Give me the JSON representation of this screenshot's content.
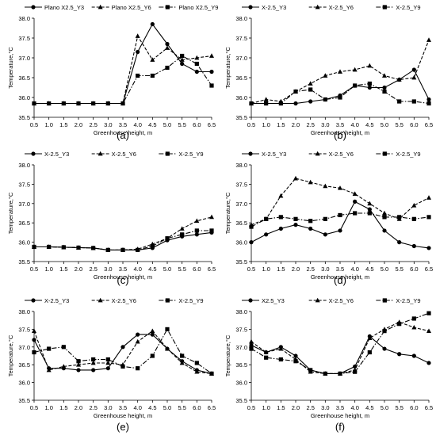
{
  "chart_data": [
    {
      "type": "line",
      "caption": "(a)",
      "xlabel": "Greenhouse height, m",
      "ylabel": "Temperature,°C",
      "xlim": [
        0.5,
        6.5
      ],
      "ylim": [
        35.5,
        38.0
      ],
      "x_ticks": [
        "0.5",
        "1.0",
        "1.5",
        "2.0",
        "2.5",
        "3.0",
        "3.5",
        "4.0",
        "4.5",
        "5.0",
        "5.5",
        "6.0",
        "6.5"
      ],
      "y_ticks": [
        "35.5",
        "36.0",
        "36.5",
        "37.0",
        "37.5",
        "38.0"
      ],
      "legend_position": "top",
      "x": [
        0.5,
        1.0,
        1.5,
        2.0,
        2.5,
        3.0,
        3.5,
        4.0,
        4.5,
        5.0,
        5.5,
        6.0,
        6.5
      ],
      "series": [
        {
          "name": "Plano X2.5_Y3",
          "marker": "circle",
          "dash": "solid",
          "values": [
            35.85,
            35.85,
            35.85,
            35.85,
            35.85,
            35.85,
            35.85,
            37.15,
            37.85,
            37.35,
            36.85,
            36.65,
            36.65
          ]
        },
        {
          "name": "Plano X2.5_Y6",
          "marker": "triangle",
          "dash": "dashed",
          "values": [
            35.85,
            35.85,
            35.85,
            35.85,
            35.85,
            35.85,
            35.85,
            37.55,
            36.95,
            37.25,
            36.95,
            37.0,
            37.05
          ]
        },
        {
          "name": "Plano X2.5_Y9",
          "marker": "square",
          "dash": "dashdot",
          "values": [
            35.85,
            35.85,
            35.85,
            35.85,
            35.85,
            35.85,
            35.85,
            36.55,
            36.55,
            36.75,
            37.05,
            36.85,
            36.3
          ]
        }
      ]
    },
    {
      "type": "line",
      "caption": "(b)",
      "xlabel": "Greenhouse height, m",
      "ylabel": "Temperature,°C",
      "xlim": [
        0.5,
        6.5
      ],
      "ylim": [
        35.5,
        38.0
      ],
      "x_ticks": [
        "0.5",
        "1.0",
        "1.5",
        "2.0",
        "2.5",
        "3.0",
        "3.5",
        "4.0",
        "4.5",
        "5.0",
        "5.5",
        "6.0",
        "6.5"
      ],
      "y_ticks": [
        "35.5",
        "36.0",
        "36.5",
        "37.0",
        "37.5",
        "38.0"
      ],
      "legend_position": "top",
      "x": [
        0.5,
        1.0,
        1.5,
        2.0,
        2.5,
        3.0,
        3.5,
        4.0,
        4.5,
        5.0,
        5.5,
        6.0,
        6.5
      ],
      "series": [
        {
          "name": "X-2.5_Y3",
          "marker": "circle",
          "dash": "solid",
          "values": [
            35.85,
            35.85,
            35.85,
            35.85,
            35.9,
            35.95,
            36.05,
            36.3,
            36.25,
            36.25,
            36.45,
            36.7,
            35.95
          ]
        },
        {
          "name": "X-2.5_Y6",
          "marker": "triangle",
          "dash": "dashed",
          "values": [
            35.85,
            35.95,
            35.9,
            36.15,
            36.35,
            36.55,
            36.65,
            36.7,
            36.8,
            36.55,
            36.45,
            36.5,
            37.45
          ]
        },
        {
          "name": "X-2.5_Y9",
          "marker": "square",
          "dash": "dashdot",
          "values": [
            35.85,
            35.85,
            35.85,
            36.15,
            36.2,
            35.95,
            36.0,
            36.3,
            36.35,
            36.15,
            35.9,
            35.9,
            35.85
          ]
        }
      ]
    },
    {
      "type": "line",
      "caption": "(c)",
      "xlabel": "Greenhouse height, m",
      "ylabel": "Temperature,°C",
      "xlim": [
        0.5,
        6.5
      ],
      "ylim": [
        35.5,
        38.0
      ],
      "x_ticks": [
        "0.5",
        "1.0",
        "1.5",
        "2.0",
        "2.5",
        "3.0",
        "3.5",
        "4.0",
        "4.5",
        "5.0",
        "5.5",
        "6.0",
        "6.5"
      ],
      "y_ticks": [
        "35.5",
        "36.0",
        "36.5",
        "37.0",
        "37.5",
        "38.0"
      ],
      "legend_position": "top",
      "x": [
        0.5,
        1.0,
        1.5,
        2.0,
        2.5,
        3.0,
        3.5,
        4.0,
        4.5,
        5.0,
        5.5,
        6.0,
        6.5
      ],
      "series": [
        {
          "name": "X-2.5_Y3",
          "marker": "circle",
          "dash": "solid",
          "values": [
            35.88,
            35.88,
            35.87,
            35.86,
            35.85,
            35.8,
            35.8,
            35.8,
            35.85,
            36.05,
            36.15,
            36.2,
            36.25
          ]
        },
        {
          "name": "X-2.5_Y6",
          "marker": "triangle",
          "dash": "dashed",
          "values": [
            35.88,
            35.88,
            35.87,
            35.86,
            35.85,
            35.8,
            35.8,
            35.82,
            35.95,
            36.1,
            36.35,
            36.55,
            36.65
          ]
        },
        {
          "name": "X-2.5_Y9",
          "marker": "square",
          "dash": "dashdot",
          "values": [
            35.88,
            35.88,
            35.87,
            35.86,
            35.85,
            35.8,
            35.8,
            35.8,
            35.9,
            36.1,
            36.2,
            36.3,
            36.3
          ]
        }
      ]
    },
    {
      "type": "line",
      "caption": "(d)",
      "xlabel": "Greenhouse height, m",
      "ylabel": "Temperature,°C",
      "xlim": [
        0.5,
        6.5
      ],
      "ylim": [
        35.5,
        38.0
      ],
      "x_ticks": [
        "0.5",
        "1.0",
        "1.5",
        "2.0",
        "2.5",
        "3.0",
        "3.5",
        "4.0",
        "4.5",
        "5.0",
        "5.5",
        "6.0",
        "6.5"
      ],
      "y_ticks": [
        "35.5",
        "36.0",
        "36.5",
        "37.0",
        "37.5",
        "38.0"
      ],
      "legend_position": "top",
      "x": [
        0.5,
        1.0,
        1.5,
        2.0,
        2.5,
        3.0,
        3.5,
        4.0,
        4.5,
        5.0,
        5.5,
        6.0,
        6.5
      ],
      "series": [
        {
          "name": "X-2.5_Y3",
          "marker": "circle",
          "dash": "solid",
          "values": [
            36.0,
            36.2,
            36.35,
            36.45,
            36.35,
            36.2,
            36.3,
            37.05,
            36.85,
            36.3,
            36.0,
            35.9,
            35.85
          ]
        },
        {
          "name": "X-2.5_Y6",
          "marker": "triangle",
          "dash": "dashed",
          "values": [
            36.45,
            36.6,
            37.2,
            37.65,
            37.55,
            37.45,
            37.4,
            37.25,
            37.0,
            36.75,
            36.6,
            36.95,
            37.15
          ]
        },
        {
          "name": "X-2.5_Y9",
          "marker": "square",
          "dash": "dashdot",
          "values": [
            36.4,
            36.6,
            36.65,
            36.6,
            36.55,
            36.6,
            36.7,
            36.75,
            36.75,
            36.65,
            36.65,
            36.6,
            36.65
          ]
        }
      ]
    },
    {
      "type": "line",
      "caption": "(e)",
      "xlabel": "Greenhouse height, m",
      "ylabel": "Temperature,°C",
      "xlim": [
        0.5,
        6.5
      ],
      "ylim": [
        35.5,
        38.0
      ],
      "x_ticks": [
        "0.5",
        "1.0",
        "1.5",
        "2.0",
        "2.5",
        "3.0",
        "3.5",
        "4.0",
        "4.5",
        "5.0",
        "5.5",
        "6.0",
        "6.5"
      ],
      "y_ticks": [
        "35.5",
        "36.0",
        "36.5",
        "37.0",
        "37.5",
        "38.0"
      ],
      "legend_position": "top",
      "x": [
        0.5,
        1.0,
        1.5,
        2.0,
        2.5,
        3.0,
        3.5,
        4.0,
        4.5,
        5.0,
        5.5,
        6.0,
        6.5
      ],
      "series": [
        {
          "name": "X-2.5_Y3",
          "marker": "circle",
          "dash": "solid",
          "values": [
            37.2,
            36.4,
            36.4,
            36.35,
            36.35,
            36.4,
            37.0,
            37.35,
            37.35,
            36.95,
            36.6,
            36.35,
            36.25
          ]
        },
        {
          "name": "X-2.5_Y6",
          "marker": "triangle",
          "dash": "dashed",
          "values": [
            37.45,
            36.35,
            36.45,
            36.5,
            36.55,
            36.55,
            36.5,
            37.15,
            37.45,
            36.95,
            36.55,
            36.3,
            36.25
          ]
        },
        {
          "name": "X-2.5_Y9",
          "marker": "square",
          "dash": "dashdot",
          "values": [
            36.85,
            36.95,
            37.0,
            36.6,
            36.65,
            36.65,
            36.45,
            36.4,
            36.75,
            37.5,
            36.75,
            36.55,
            36.25
          ]
        }
      ]
    },
    {
      "type": "line",
      "caption": "(f)",
      "xlabel": "Greenhouse height, m",
      "ylabel": "Temperature,°C",
      "xlim": [
        0.5,
        6.5
      ],
      "ylim": [
        35.5,
        38.0
      ],
      "x_ticks": [
        "0.5",
        "1.0",
        "1.5",
        "2.0",
        "2.5",
        "3.0",
        "3.5",
        "4.0",
        "4.5",
        "5.0",
        "5.5",
        "6.0",
        "6.5"
      ],
      "y_ticks": [
        "35.5",
        "36.0",
        "36.5",
        "37.0",
        "37.5",
        "38.0"
      ],
      "legend_position": "top",
      "x": [
        0.5,
        1.0,
        1.5,
        2.0,
        2.5,
        3.0,
        3.5,
        4.0,
        4.5,
        5.0,
        5.5,
        6.0,
        6.5
      ],
      "series": [
        {
          "name": "X2.5_Y3",
          "marker": "circle",
          "dash": "solid",
          "values": [
            37.05,
            36.85,
            37.0,
            36.75,
            36.35,
            36.25,
            36.25,
            36.45,
            37.3,
            36.95,
            36.8,
            36.75,
            36.55
          ]
        },
        {
          "name": "X-2.5_Y6",
          "marker": "triangle",
          "dash": "dashed",
          "values": [
            37.15,
            36.85,
            36.95,
            36.65,
            36.3,
            36.25,
            36.25,
            36.35,
            37.25,
            37.5,
            37.7,
            37.55,
            37.45
          ]
        },
        {
          "name": "X-2.5_Y9",
          "marker": "square",
          "dash": "dashdot",
          "values": [
            36.95,
            36.7,
            36.65,
            36.6,
            36.35,
            36.25,
            36.25,
            36.3,
            36.85,
            37.45,
            37.65,
            37.8,
            37.95
          ]
        }
      ]
    }
  ]
}
